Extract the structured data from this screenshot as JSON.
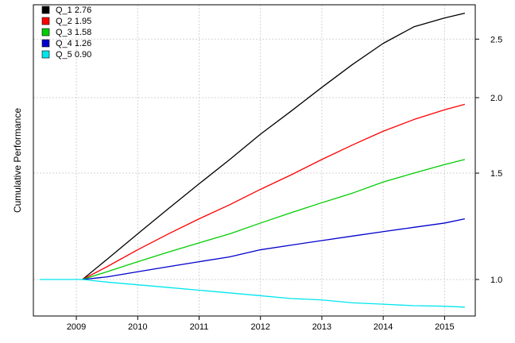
{
  "chart_data": {
    "type": "line",
    "title": "",
    "xlabel": "",
    "ylabel": "Cumulative Performance",
    "y_scale": "log",
    "y_axis_side": "right",
    "grid": true,
    "legend_position": "top-left",
    "xlim": [
      2008.3,
      2015.5
    ],
    "ylim": [
      0.87,
      2.85
    ],
    "x_ticks": [
      2009,
      2010,
      2011,
      2012,
      2013,
      2014,
      2015
    ],
    "x_tick_labels": [
      "2009",
      "2010",
      "2011",
      "2012",
      "2013",
      "2014",
      "2015"
    ],
    "y_ticks": [
      1.0,
      1.5,
      2.0,
      2.5
    ],
    "y_tick_labels": [
      "1.0",
      "1.5",
      "2.0",
      "2.5"
    ],
    "series": [
      {
        "name": "Q_1 2.76",
        "color": "#000000",
        "x": [
          2009.1,
          2009.5,
          2010.0,
          2010.5,
          2011.0,
          2011.5,
          2012.0,
          2012.5,
          2013.0,
          2013.5,
          2014.0,
          2014.5,
          2015.0,
          2015.33
        ],
        "y": [
          1.0,
          1.08,
          1.19,
          1.31,
          1.44,
          1.58,
          1.74,
          1.9,
          2.08,
          2.27,
          2.46,
          2.62,
          2.71,
          2.76
        ]
      },
      {
        "name": "Q_2 1.95",
        "color": "#ff0000",
        "x": [
          2009.1,
          2009.5,
          2010.0,
          2010.5,
          2011.0,
          2011.5,
          2012.0,
          2012.5,
          2013.0,
          2013.5,
          2014.0,
          2014.5,
          2015.0,
          2015.33
        ],
        "y": [
          1.0,
          1.05,
          1.12,
          1.19,
          1.26,
          1.33,
          1.41,
          1.49,
          1.58,
          1.67,
          1.76,
          1.84,
          1.91,
          1.95
        ]
      },
      {
        "name": "Q_3 1.58",
        "color": "#00cd00",
        "x": [
          2009.1,
          2009.5,
          2010.0,
          2010.5,
          2011.0,
          2011.5,
          2012.0,
          2012.5,
          2013.0,
          2013.5,
          2014.0,
          2014.5,
          2015.0,
          2015.33
        ],
        "y": [
          1.0,
          1.03,
          1.07,
          1.11,
          1.15,
          1.19,
          1.24,
          1.29,
          1.34,
          1.39,
          1.45,
          1.5,
          1.55,
          1.58
        ]
      },
      {
        "name": "Q_4 1.26",
        "color": "#0000cd",
        "x": [
          2009.1,
          2009.5,
          2010.0,
          2010.5,
          2011.0,
          2011.5,
          2012.0,
          2012.5,
          2013.0,
          2013.5,
          2014.0,
          2014.5,
          2015.0,
          2015.33
        ],
        "y": [
          1.0,
          1.01,
          1.03,
          1.05,
          1.07,
          1.09,
          1.12,
          1.14,
          1.16,
          1.18,
          1.2,
          1.22,
          1.24,
          1.26
        ]
      },
      {
        "name": "Q_5 0.90",
        "color": "#00e5ee",
        "x": [
          2008.4,
          2008.8,
          2009.1,
          2009.5,
          2010.0,
          2010.5,
          2011.0,
          2011.5,
          2012.0,
          2012.5,
          2013.0,
          2013.5,
          2014.0,
          2014.5,
          2015.0,
          2015.33
        ],
        "y": [
          1.0,
          1.0,
          1.0,
          0.99,
          0.98,
          0.97,
          0.96,
          0.95,
          0.94,
          0.93,
          0.925,
          0.915,
          0.91,
          0.905,
          0.903,
          0.9
        ]
      }
    ]
  }
}
